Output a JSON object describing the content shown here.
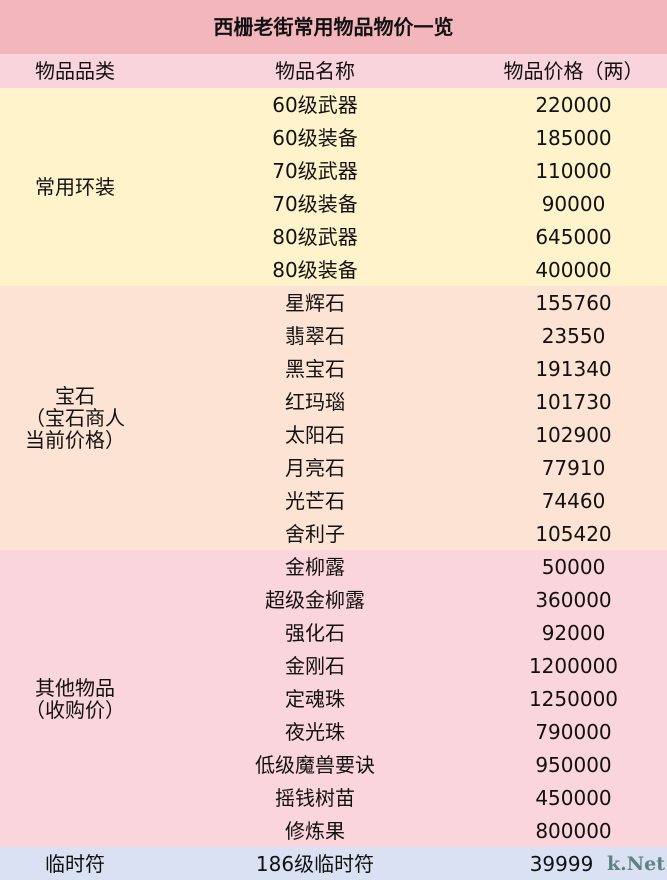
{
  "title": "西栅老街常用物品物价一览",
  "headers": [
    "物品品类",
    "物品名称",
    "物品价格（两）"
  ],
  "sections": [
    {
      "category": "常用环装",
      "color": "#fff3cc",
      "items": [
        [
          "60级武器",
          "220000"
        ],
        [
          "60级装备",
          "185000"
        ],
        [
          "70级武器",
          "110000"
        ],
        [
          "70级装备",
          "90000"
        ],
        [
          "80级武器",
          "645000"
        ],
        [
          "80级装备",
          "400000"
        ]
      ]
    },
    {
      "category": "宝石\n（宝石商人\n当前价格）",
      "color": "#fce3d4",
      "items": [
        [
          "星辉石",
          "155760"
        ],
        [
          "翡翠石",
          "23550"
        ],
        [
          "黑宝石",
          "191340"
        ],
        [
          "红玛瑙",
          "101730"
        ],
        [
          "太阳石",
          "102900"
        ],
        [
          "月亮石",
          "77910"
        ],
        [
          "光芒石",
          "74460"
        ],
        [
          "舍利子",
          "105420"
        ]
      ]
    },
    {
      "category": "其他物品\n（收购价）",
      "color": "#fbd5dc",
      "items": [
        [
          "金柳露",
          "50000"
        ],
        [
          "超级金柳露",
          "360000"
        ],
        [
          "强化石",
          "92000"
        ],
        [
          "金刚石",
          "1200000"
        ],
        [
          "定魂珠",
          "1250000"
        ],
        [
          "夜光珠",
          "790000"
        ],
        [
          "低级魔兽要诀",
          "950000"
        ],
        [
          "摇钱树苗",
          "450000"
        ],
        [
          "修炼果",
          "800000"
        ]
      ]
    },
    {
      "category": "临时符",
      "color": "#d9e1f3",
      "items": [
        [
          "186级临时符",
          "39999"
        ]
      ]
    }
  ],
  "watermark": "k.Net"
}
